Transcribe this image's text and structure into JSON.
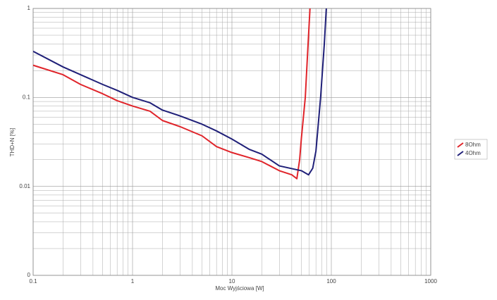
{
  "chart_data": {
    "type": "line",
    "x_label": "Moc Wyjściowa [W]",
    "y_label": "THD+N [%]",
    "x_log": true,
    "y_log": true,
    "grid": true,
    "legend": "right",
    "xlim": [
      0.1,
      1000
    ],
    "xticks": [
      0.1,
      1,
      10,
      100,
      1000
    ],
    "ylim": [
      0.001,
      1
    ],
    "yticks": [
      {
        "value": 0.001,
        "label": "0"
      },
      0.01,
      0.1,
      1
    ],
    "series": [
      {
        "name": "8Ohm",
        "color": "#e0242a",
        "x": [
          0.1,
          0.2,
          0.3,
          0.5,
          0.7,
          1,
          1.5,
          2,
          3,
          5,
          7,
          10,
          15,
          20,
          30,
          40,
          45,
          48,
          50,
          54.7,
          58,
          61
        ],
        "values": [
          0.23,
          0.18,
          0.14,
          0.11,
          0.092,
          0.08,
          0.07,
          0.055,
          0.047,
          0.037,
          0.028,
          0.024,
          0.021,
          0.019,
          0.015,
          0.0135,
          0.0122,
          0.02,
          0.035,
          0.1,
          0.35,
          1
        ]
      },
      {
        "name": "4Ohm",
        "color": "#1f1f78",
        "x": [
          0.1,
          0.2,
          0.3,
          0.5,
          0.7,
          1,
          1.5,
          2,
          3,
          5,
          7,
          10,
          15,
          20,
          30,
          50,
          59,
          65,
          70,
          78,
          85,
          89
        ],
        "values": [
          0.33,
          0.22,
          0.18,
          0.14,
          0.12,
          0.1,
          0.087,
          0.072,
          0.062,
          0.05,
          0.042,
          0.034,
          0.026,
          0.023,
          0.017,
          0.015,
          0.0135,
          0.016,
          0.025,
          0.1,
          0.4,
          1
        ]
      }
    ]
  }
}
